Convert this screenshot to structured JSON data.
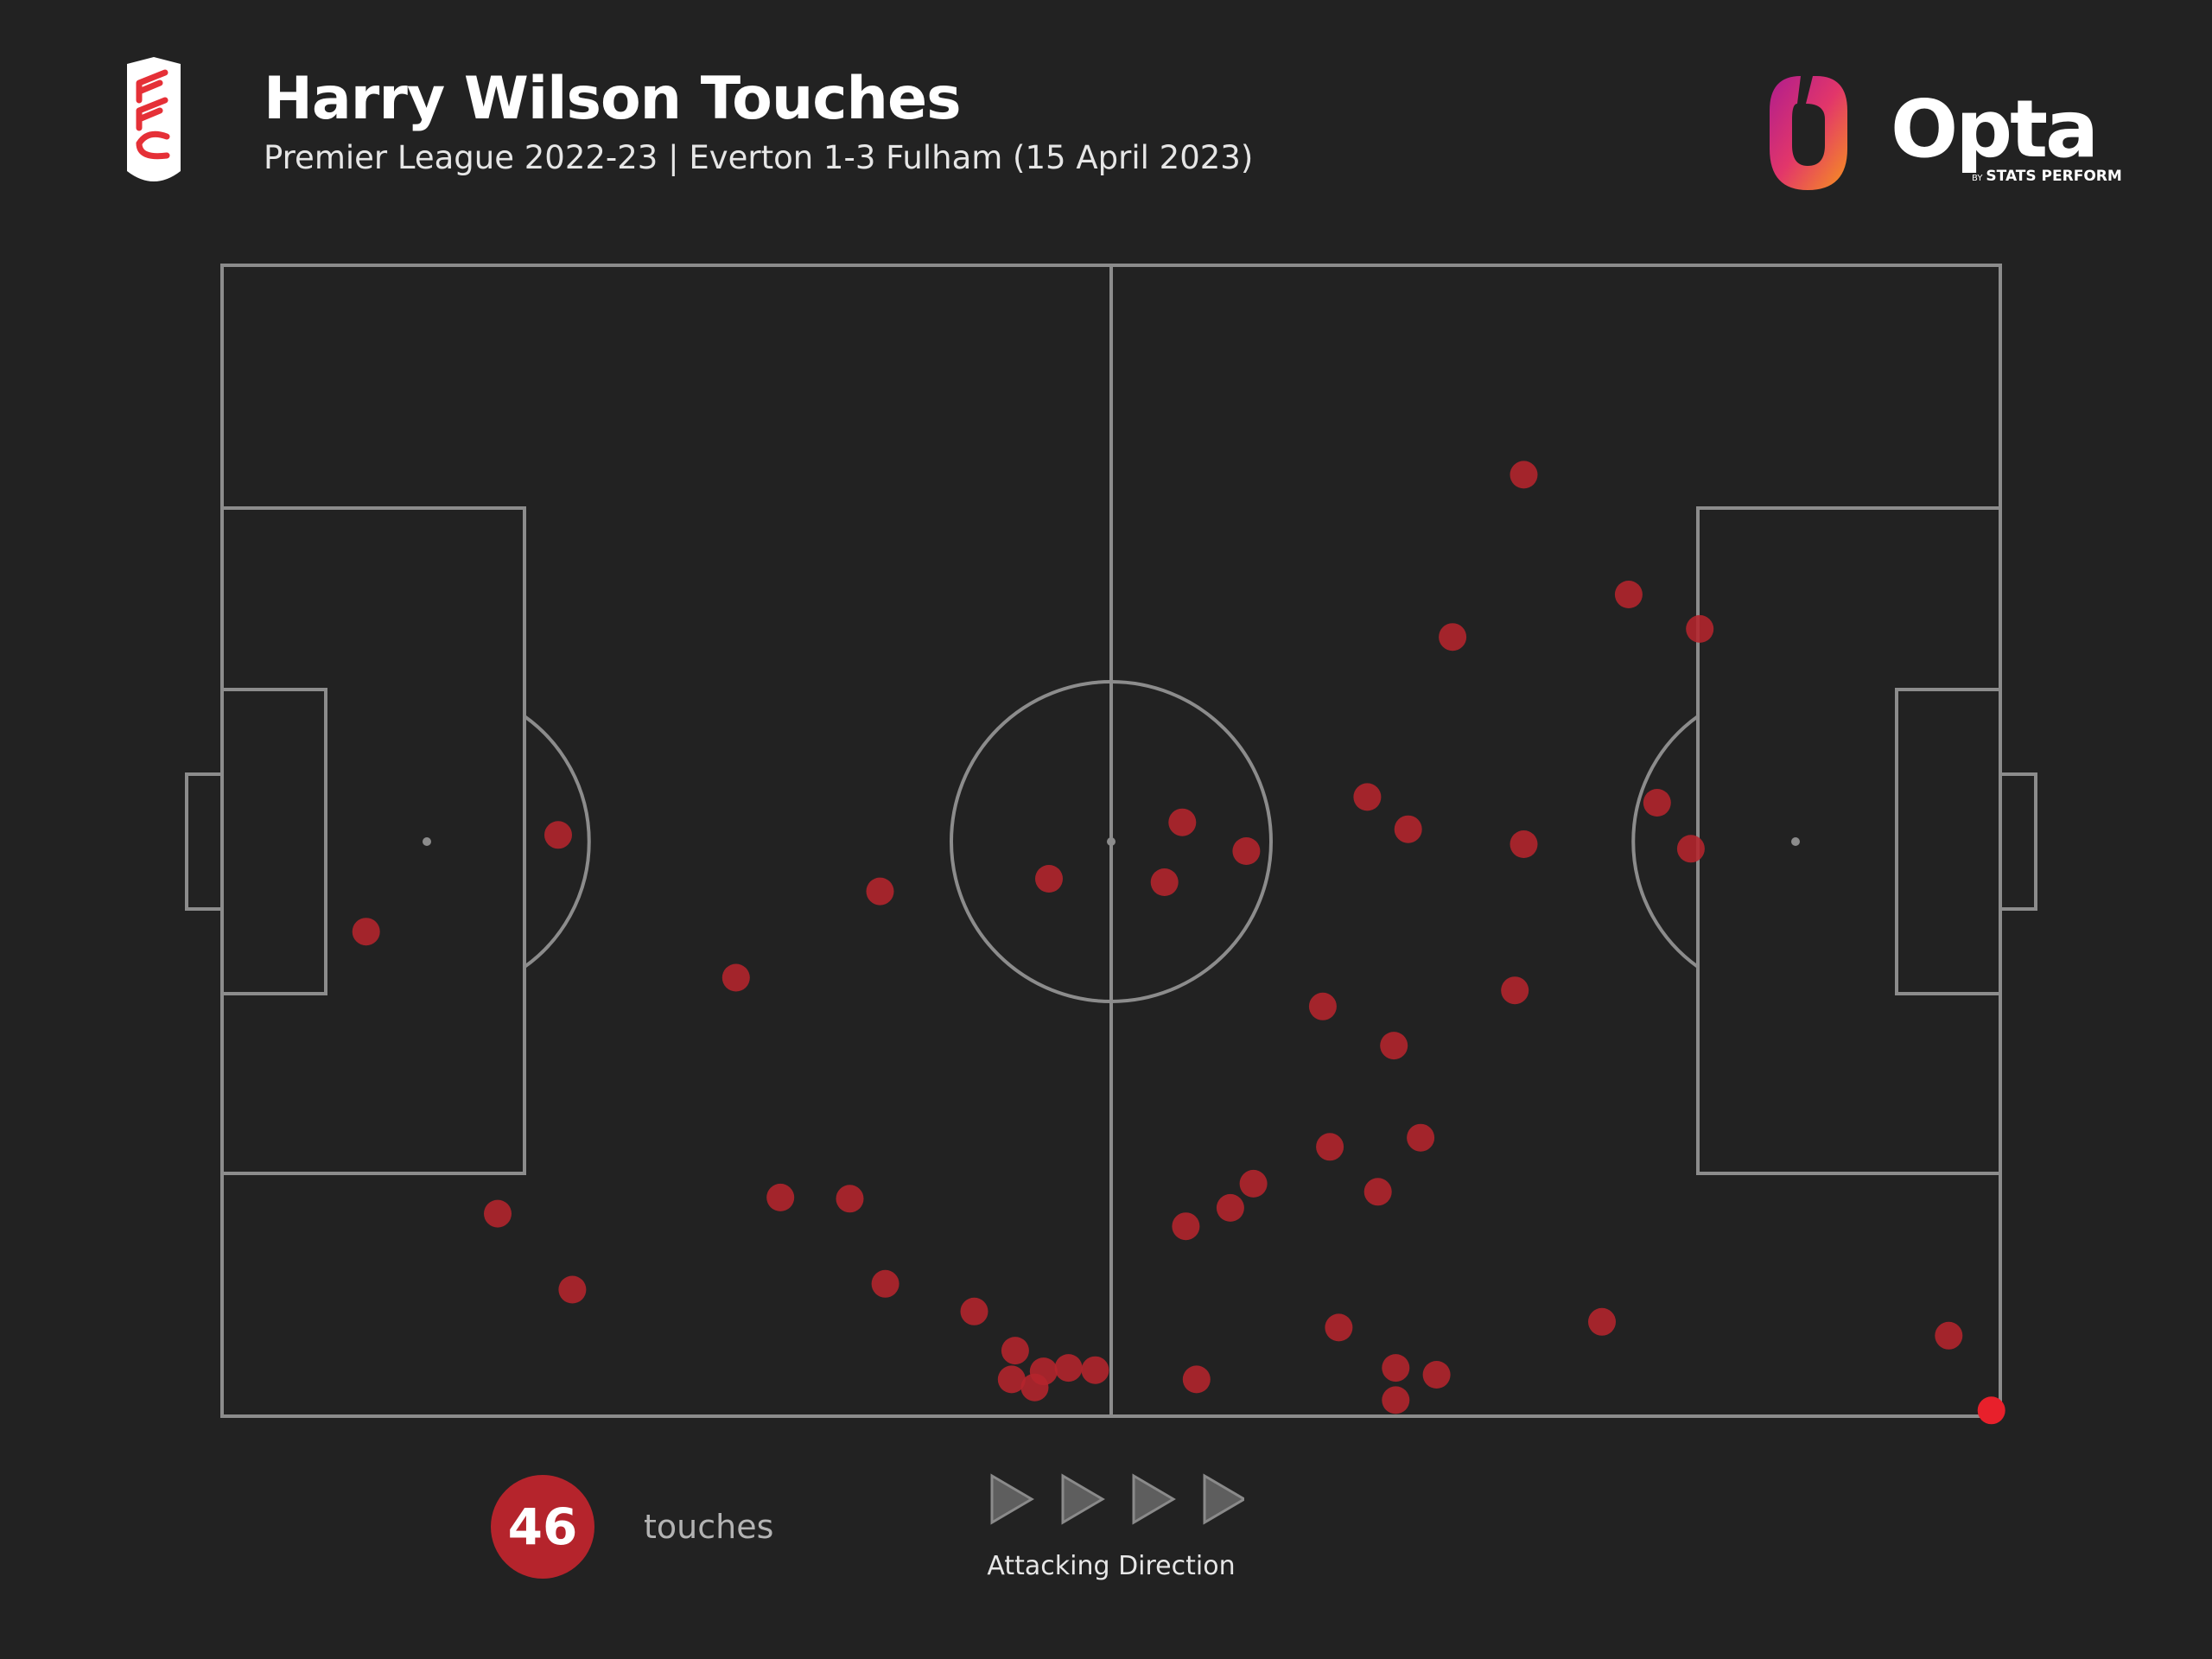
{
  "header": {
    "title": "Harry Wilson Touches",
    "subtitle": "Premier League 2022-23 | Everton 1-3 Fulham (15 April 2023)"
  },
  "branding": {
    "club_crest_lettering": "FFC",
    "provider_name": "Opta",
    "provider_by": "BY",
    "provider_tagline": "STATS PERFORM"
  },
  "colors": {
    "background": "#222222",
    "pitch_lines": "#8c8c8c",
    "touch_marker": "#b5242c",
    "last_touch_marker": "#e8202b"
  },
  "summary": {
    "touch_count": "46",
    "touch_label": "touches",
    "direction_label": "Attacking Direction",
    "direction_icon": "play-arrow-icon"
  },
  "chart_data": {
    "type": "scatter",
    "xlim": [
      0,
      100
    ],
    "ylim": [
      0,
      100
    ],
    "grid": false,
    "series": [
      {
        "points": [
          [
            79.1,
            71.4
          ],
          [
            69.2,
            67.7
          ],
          [
            73.2,
            49.7
          ],
          [
            72.7,
            37.0
          ],
          [
            37.0,
            45.6
          ],
          [
            73.2,
            81.8
          ],
          [
            66.7,
            51.0
          ],
          [
            64.4,
            53.8
          ],
          [
            80.7,
            53.3
          ],
          [
            57.6,
            49.1
          ],
          [
            82.6,
            49.3
          ],
          [
            53.0,
            46.4
          ],
          [
            61.9,
            35.6
          ],
          [
            83.1,
            68.4
          ],
          [
            65.9,
            32.2
          ],
          [
            46.5,
            46.7
          ],
          [
            8.1,
            42.1
          ],
          [
            18.9,
            50.5
          ],
          [
            28.9,
            38.1
          ],
          [
            62.3,
            23.4
          ],
          [
            58.0,
            20.2
          ],
          [
            67.4,
            24.2
          ],
          [
            65.0,
            19.5
          ],
          [
            56.7,
            18.1
          ],
          [
            54.2,
            16.5
          ],
          [
            15.5,
            17.6
          ],
          [
            31.4,
            19.0
          ],
          [
            35.3,
            18.9
          ],
          [
            19.7,
            11.0
          ],
          [
            37.3,
            11.5
          ],
          [
            42.3,
            9.1
          ],
          [
            44.6,
            5.7
          ],
          [
            44.4,
            3.2
          ],
          [
            46.2,
            3.9
          ],
          [
            47.6,
            4.2
          ],
          [
            49.1,
            4.0
          ],
          [
            45.7,
            2.5
          ],
          [
            54.8,
            3.2
          ],
          [
            62.8,
            7.7
          ],
          [
            68.3,
            3.6
          ],
          [
            66.0,
            4.2
          ],
          [
            66.0,
            1.4
          ],
          [
            77.6,
            8.2
          ],
          [
            97.1,
            7.0
          ],
          [
            54.0,
            51.6
          ],
          [
            99.5,
            0.5
          ]
        ]
      }
    ]
  }
}
